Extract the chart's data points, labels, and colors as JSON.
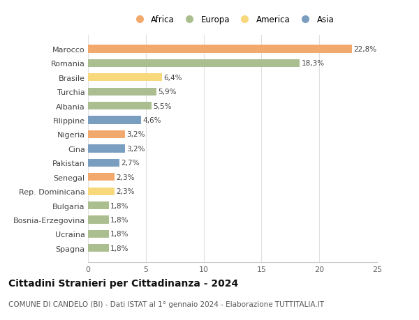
{
  "categories": [
    "Spagna",
    "Ucraina",
    "Bosnia-Erzegovina",
    "Bulgaria",
    "Rep. Dominicana",
    "Senegal",
    "Pakistan",
    "Cina",
    "Nigeria",
    "Filippine",
    "Albania",
    "Turchia",
    "Brasile",
    "Romania",
    "Marocco"
  ],
  "values": [
    1.8,
    1.8,
    1.8,
    1.8,
    2.3,
    2.3,
    2.7,
    3.2,
    3.2,
    4.6,
    5.5,
    5.9,
    6.4,
    18.3,
    22.8
  ],
  "labels": [
    "1,8%",
    "1,8%",
    "1,8%",
    "1,8%",
    "2,3%",
    "2,3%",
    "2,7%",
    "3,2%",
    "3,2%",
    "4,6%",
    "5,5%",
    "5,9%",
    "6,4%",
    "18,3%",
    "22,8%"
  ],
  "continents": [
    "Europa",
    "Europa",
    "Europa",
    "Europa",
    "America",
    "Africa",
    "Asia",
    "Asia",
    "Africa",
    "Asia",
    "Europa",
    "Europa",
    "America",
    "Europa",
    "Africa"
  ],
  "colors": {
    "Africa": "#F2A96E",
    "Europa": "#ABBE90",
    "America": "#F7D87A",
    "Asia": "#7A9EC0"
  },
  "legend_order": [
    "Africa",
    "Europa",
    "America",
    "Asia"
  ],
  "title": "Cittadini Stranieri per Cittadinanza - 2024",
  "subtitle": "COMUNE DI CANDELO (BI) - Dati ISTAT al 1° gennaio 2024 - Elaborazione TUTTITALIA.IT",
  "xlim": [
    0,
    25
  ],
  "xticks": [
    0,
    5,
    10,
    15,
    20,
    25
  ],
  "background_color": "#ffffff",
  "bar_height": 0.55,
  "label_fontsize": 7.5,
  "title_fontsize": 10,
  "subtitle_fontsize": 7.5,
  "axis_label_fontsize": 8,
  "legend_fontsize": 8.5
}
